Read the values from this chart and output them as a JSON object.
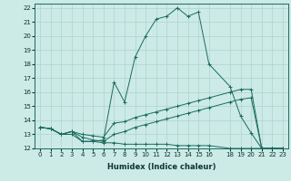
{
  "xlabel": "Humidex (Indice chaleur)",
  "bg_color": "#cceae6",
  "grid_color": "#aed4cf",
  "line_color": "#1a6b5e",
  "xlim": [
    -0.5,
    23.5
  ],
  "ylim": [
    12,
    22.3
  ],
  "xticks": [
    0,
    1,
    2,
    3,
    4,
    5,
    6,
    7,
    8,
    9,
    10,
    11,
    12,
    13,
    14,
    15,
    16,
    18,
    19,
    20,
    21,
    22,
    23
  ],
  "yticks": [
    12,
    13,
    14,
    15,
    16,
    17,
    18,
    19,
    20,
    21,
    22
  ],
  "series": [
    {
      "x": [
        0,
        1,
        2,
        3,
        4,
        5,
        6,
        7,
        8,
        9,
        10,
        11,
        12,
        13,
        14,
        15,
        16,
        18,
        19,
        20,
        21,
        22,
        23
      ],
      "y": [
        13.5,
        13.4,
        13.0,
        13.2,
        12.5,
        12.5,
        12.6,
        16.7,
        15.3,
        18.5,
        20.0,
        21.2,
        21.4,
        22.0,
        21.4,
        21.7,
        18.0,
        16.4,
        14.3,
        13.1,
        12.0,
        12.0,
        12.0
      ]
    },
    {
      "x": [
        0,
        1,
        2,
        3,
        4,
        5,
        6,
        7,
        8,
        9,
        10,
        11,
        12,
        13,
        14,
        15,
        16,
        18,
        19,
        20,
        21,
        22,
        23
      ],
      "y": [
        13.5,
        13.4,
        13.0,
        13.2,
        13.0,
        12.9,
        12.8,
        13.8,
        13.9,
        14.2,
        14.4,
        14.6,
        14.8,
        15.0,
        15.2,
        15.4,
        15.6,
        16.0,
        16.2,
        16.2,
        12.0,
        12.0,
        12.0
      ]
    },
    {
      "x": [
        0,
        1,
        2,
        3,
        4,
        5,
        6,
        7,
        8,
        9,
        10,
        11,
        12,
        13,
        14,
        15,
        16,
        18,
        19,
        20,
        21,
        22,
        23
      ],
      "y": [
        13.5,
        13.4,
        13.0,
        13.2,
        12.8,
        12.6,
        12.5,
        13.0,
        13.2,
        13.5,
        13.7,
        13.9,
        14.1,
        14.3,
        14.5,
        14.7,
        14.9,
        15.3,
        15.5,
        15.6,
        12.0,
        12.0,
        12.0
      ]
    },
    {
      "x": [
        0,
        1,
        2,
        3,
        4,
        5,
        6,
        7,
        8,
        9,
        10,
        11,
        12,
        13,
        14,
        15,
        16,
        18,
        19,
        20,
        21,
        22,
        23
      ],
      "y": [
        13.5,
        13.4,
        13.0,
        13.0,
        12.5,
        12.5,
        12.4,
        12.4,
        12.3,
        12.3,
        12.3,
        12.3,
        12.3,
        12.2,
        12.2,
        12.2,
        12.2,
        12.0,
        12.0,
        12.0,
        12.0,
        12.0,
        12.0
      ]
    }
  ]
}
